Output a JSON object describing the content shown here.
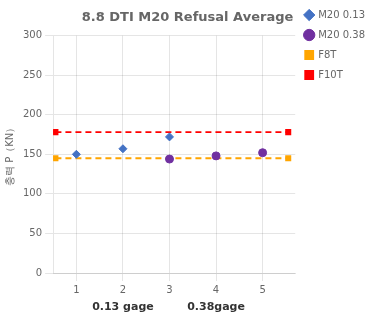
{
  "chart_data": {
    "type": "scatter",
    "title": "8.8 DTI M20 Refusal Average",
    "y_label": "충력 P（KN）",
    "xlim": [
      0.5,
      5.7
    ],
    "xticks": [
      1,
      2,
      3,
      4,
      5
    ],
    "ylim": [
      0,
      300
    ],
    "yticks": [
      0,
      50,
      100,
      150,
      200,
      250,
      300
    ],
    "grid": true,
    "legend": "upper right",
    "annotations": [
      {
        "text": "0.13 gage",
        "x": 2
      },
      {
        "text": "0.38gage",
        "x": 4
      }
    ],
    "series": [
      {
        "name": "M20 0.13",
        "color": "#4472C4",
        "marker": "diamond",
        "x": [
          1,
          2,
          3
        ],
        "values": [
          150,
          157,
          172
        ]
      },
      {
        "name": "M20 0.38",
        "color": "#7030A0",
        "marker": "circle",
        "x": [
          3,
          4,
          5
        ],
        "values": [
          144,
          148,
          152
        ]
      },
      {
        "name": "F8T",
        "type": "line",
        "line_style": "dashed",
        "marker": "square",
        "color": "#FFA500",
        "x": [
          0.55,
          5.55
        ],
        "values": [
          145,
          145
        ]
      },
      {
        "name": "F10T",
        "type": "line",
        "line_style": "dashed",
        "marker": "square",
        "color": "#FF0000",
        "x": [
          0.55,
          5.55
        ],
        "values": [
          178,
          178
        ]
      }
    ]
  }
}
